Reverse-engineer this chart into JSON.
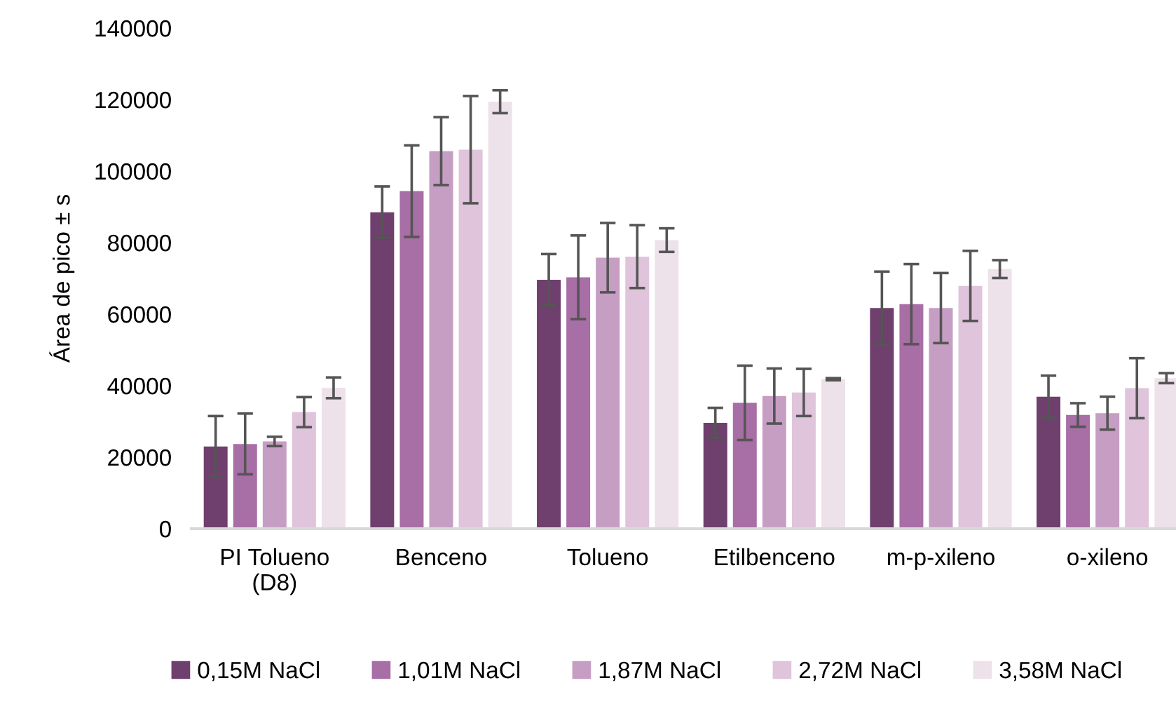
{
  "chart_data": {
    "type": "bar",
    "ylabel": "Área de pico ± s",
    "categories": [
      "PI Tolueno\n(D8)",
      "Benceno",
      "Tolueno",
      "Etilbenceno",
      "m-p-xileno",
      "o-xileno"
    ],
    "series": [
      {
        "name": "0,15M NaCl",
        "color": "#6f3f6d",
        "values": [
          23000,
          88500,
          69600,
          29600,
          61700,
          36900
        ],
        "errors": [
          8500,
          7200,
          7200,
          4200,
          10200,
          5900
        ]
      },
      {
        "name": "1,01M NaCl",
        "color": "#a86ea6",
        "values": [
          23700,
          94400,
          70300,
          35200,
          62800,
          31800
        ],
        "errors": [
          8500,
          12800,
          11700,
          10400,
          11200,
          3300
        ]
      },
      {
        "name": "1,87M NaCl",
        "color": "#c69ec4",
        "values": [
          24400,
          105600,
          75800,
          37100,
          61700,
          32300
        ],
        "errors": [
          1300,
          9500,
          9700,
          7700,
          9800,
          4600
        ]
      },
      {
        "name": "2,72M NaCl",
        "color": "#dfc4dc",
        "values": [
          32600,
          106000,
          76100,
          38100,
          67900,
          39300
        ],
        "errors": [
          4200,
          15000,
          8800,
          6600,
          9800,
          8400
        ]
      },
      {
        "name": "3,58M NaCl",
        "color": "#ede2ea",
        "values": [
          39400,
          119400,
          80700,
          41800,
          72600,
          42100
        ],
        "errors": [
          2900,
          3200,
          3300,
          300,
          2500,
          1400
        ]
      }
    ],
    "ylim": [
      0,
      140000
    ],
    "yticks": [
      0,
      20000,
      40000,
      60000,
      80000,
      100000,
      120000,
      140000
    ],
    "grid": false,
    "legend": "bottom"
  }
}
